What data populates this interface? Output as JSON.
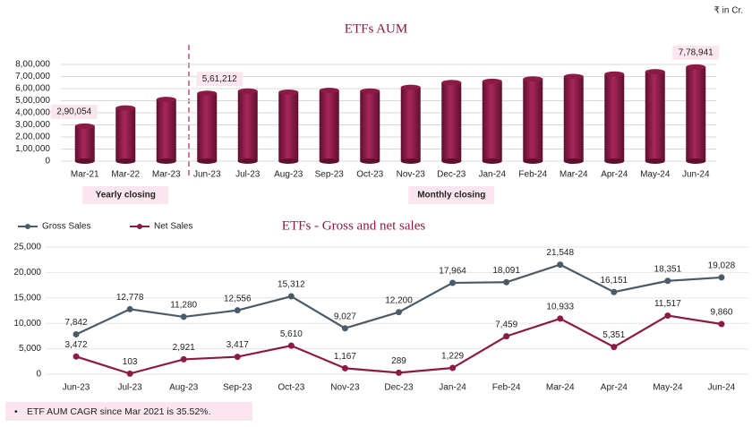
{
  "currency_note": "₹ in Cr.",
  "footnote": "ETF AUM CAGR since Mar 2021 is 35.52%.",
  "chart_data": [
    {
      "type": "bar",
      "title": "ETFs AUM",
      "categories": [
        "Mar-21",
        "Mar-22",
        "Mar-23",
        "Jun-23",
        "Jul-23",
        "Aug-23",
        "Sep-23",
        "Oct-23",
        "Nov-23",
        "Dec-23",
        "Jan-24",
        "Feb-24",
        "Mar-24",
        "Apr-24",
        "May-24",
        "Jun-24"
      ],
      "values": [
        290054,
        440000,
        510000,
        561212,
        580000,
        570000,
        585000,
        580000,
        610000,
        650000,
        660000,
        680000,
        700000,
        720000,
        740000,
        778941
      ],
      "value_labels": [
        "2,90,054",
        null,
        null,
        "5,61,212",
        null,
        null,
        null,
        null,
        null,
        null,
        null,
        null,
        null,
        null,
        null,
        "7,78,941"
      ],
      "color": "#8b1a45",
      "annotations": [
        "Yearly closing",
        "Monthly closing"
      ],
      "ylim": [
        0,
        800000
      ],
      "yticks": [
        0,
        {
          "value": 100000,
          "label": "1,00,000"
        },
        {
          "value": 200000,
          "label": "2,00,000"
        },
        {
          "value": 300000,
          "label": "3,00,000"
        },
        {
          "value": 400000,
          "label": "4,00,000"
        },
        {
          "value": 500000,
          "label": "5,00,000"
        },
        {
          "value": 600000,
          "label": "6,00,000"
        },
        {
          "value": 700000,
          "label": "7,00,000"
        },
        {
          "value": 800000,
          "label": "8,00,000"
        }
      ],
      "grid": true
    },
    {
      "type": "line",
      "title": "ETFs - Gross and net sales",
      "categories": [
        "Jun-23",
        "Jul-23",
        "Aug-23",
        "Sep-23",
        "Oct-23",
        "Nov-23",
        "Dec-23",
        "Jan-24",
        "Feb-24",
        "Mar-24",
        "Apr-24",
        "May-24",
        "Jun-24"
      ],
      "series": [
        {
          "name": "Gross Sales",
          "color": "#4b5b68",
          "values": [
            7842,
            12778,
            11280,
            12556,
            15312,
            9027,
            12200,
            17964,
            18091,
            21548,
            16151,
            18351,
            19028
          ],
          "value_labels": [
            "7,842",
            "12,778",
            "11,280",
            "12,556",
            "15,312",
            "9,027",
            "12,200",
            "17,964",
            "18,091",
            "21,548",
            "16,151",
            "18,351",
            "19,028"
          ]
        },
        {
          "name": "Net Sales",
          "color": "#8b1a45",
          "values": [
            3472,
            103,
            2921,
            3417,
            5610,
            1167,
            289,
            1229,
            7459,
            10933,
            5351,
            11517,
            9860
          ],
          "value_labels": [
            "3,472",
            "103",
            "2,921",
            "3,417",
            "5,610",
            "1,167",
            "289",
            "1,229",
            "7,459",
            "10,933",
            "5,351",
            "11,517",
            "9,860"
          ]
        }
      ],
      "ylim": [
        0,
        25000
      ],
      "yticks": [
        0,
        {
          "value": 5000,
          "label": "5,000"
        },
        {
          "value": 10000,
          "label": "10,000"
        },
        {
          "value": 15000,
          "label": "15,000"
        },
        {
          "value": 20000,
          "label": "20,000"
        },
        {
          "value": 25000,
          "label": "25,000"
        }
      ],
      "grid": true,
      "legend": "top-left"
    }
  ]
}
